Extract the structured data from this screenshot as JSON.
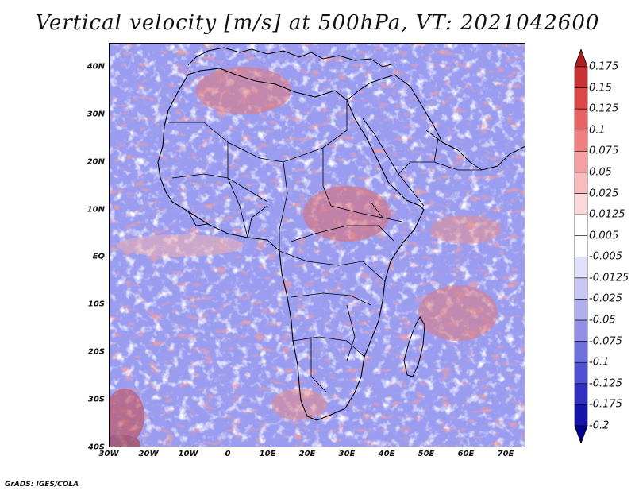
{
  "title": "Vertical velocity [m/s] at 500hPa, VT: 2021042600",
  "credit": "GrADS: IGES/COLA",
  "map": {
    "lon_range": [
      -30,
      75
    ],
    "lat_range": [
      -40,
      45
    ],
    "lat_labels": [
      "40N",
      "30N",
      "20N",
      "10N",
      "EQ",
      "10S",
      "20S",
      "30S",
      "40S"
    ],
    "lat_values": [
      40,
      30,
      20,
      10,
      0,
      -10,
      -20,
      -30,
      -40
    ],
    "lon_labels": [
      "30W",
      "20W",
      "10W",
      "0",
      "10E",
      "20E",
      "30E",
      "40E",
      "50E",
      "60E",
      "70E"
    ],
    "lon_values": [
      -30,
      -20,
      -10,
      0,
      10,
      20,
      30,
      40,
      50,
      60,
      70
    ]
  },
  "colorbar": {
    "labels": [
      "0.175",
      "0.15",
      "0.125",
      "0.1",
      "0.075",
      "0.05",
      "0.025",
      "0.0125",
      "0.005",
      "-0.005",
      "-0.0125",
      "-0.025",
      "-0.05",
      "-0.075",
      "-0.1",
      "-0.125",
      "-0.175",
      "-0.2"
    ],
    "colors": [
      "#b01e1e",
      "#c83232",
      "#dc4646",
      "#e86464",
      "#f08080",
      "#f4a0a0",
      "#f8bcbc",
      "#fcd8d8",
      "#ffffff",
      "#ffffff",
      "#e0e0fa",
      "#c8c8f4",
      "#b0b0ee",
      "#9090e6",
      "#7070de",
      "#5050d2",
      "#3030c2",
      "#1414aa",
      "#00008c"
    ]
  }
}
